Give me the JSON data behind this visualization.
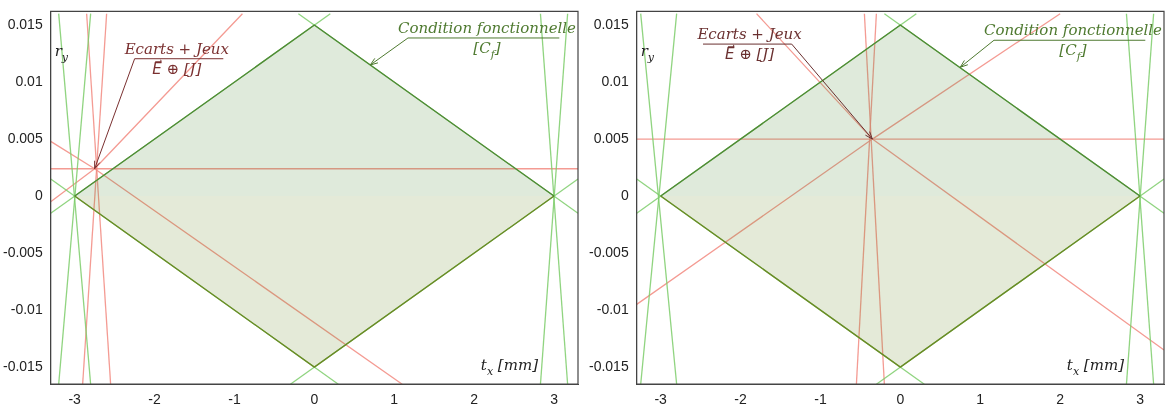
{
  "chart_data": [
    {
      "type": "line",
      "xlabel": "t$_{x}$ [mm]",
      "ylabel": "r$_{y}$",
      "xlim": [
        -3.3,
        3.3
      ],
      "ylim": [
        -0.0165,
        0.0162
      ],
      "xticks": [
        -3,
        -2,
        -1,
        0,
        1,
        2,
        3
      ],
      "yticks": [
        -0.015,
        -0.01,
        -0.005,
        0,
        0.005,
        0.01,
        0.015
      ],
      "annotations": [
        {
          "text": "Ecarts + Jeux\nE⃗ ⊕ [J]",
          "x": -2.75,
          "y": 0.0024
        },
        {
          "text": "Condition fonctionnelle\n[C$_{f}$]",
          "x": 0.7,
          "y": 0.0115
        }
      ],
      "series": [
        {
          "type": "area",
          "color": "#4f8a35",
          "x": [
            -3,
            0,
            3
          ],
          "values": [
            0,
            0.015,
            0
          ]
        },
        {
          "type": "area",
          "color": "#6a8a25",
          "x": [
            -3,
            0,
            3
          ],
          "values": [
            0,
            -0.015,
            0
          ]
        },
        {
          "color": "#7ccc6a",
          "x": [
            -3.3,
            0.2
          ],
          "values": [
            -0.0015,
            0.016
          ]
        },
        {
          "color": "#7ccc6a",
          "x": [
            -0.2,
            3.3
          ],
          "values": [
            0.016,
            -0.0015
          ]
        },
        {
          "color": "#7ccc6a",
          "x": [
            -3.3,
            0.3
          ],
          "values": [
            0.0015,
            -0.0165
          ]
        },
        {
          "color": "#7ccc6a",
          "x": [
            -0.3,
            3.3
          ],
          "values": [
            -0.0165,
            0.0015
          ]
        },
        {
          "color": "#7ccc6a",
          "x": [
            -3.2,
            -2.8
          ],
          "values": [
            0.016,
            -0.0165
          ]
        },
        {
          "color": "#7ccc6a",
          "x": [
            -2.8,
            -3.2
          ],
          "values": [
            0.016,
            -0.0165
          ]
        },
        {
          "color": "#7ccc6a",
          "x": [
            2.83,
            3.17
          ],
          "values": [
            0.016,
            -0.0165
          ]
        },
        {
          "color": "#7ccc6a",
          "x": [
            3.17,
            2.83
          ],
          "values": [
            0.016,
            -0.0165
          ]
        },
        {
          "color": "#f28a80",
          "x": [
            -3.3,
            3.3
          ],
          "values": [
            0.0024,
            0.0024
          ]
        },
        {
          "color": "#f28a80",
          "x": [
            -3.3,
            -2.75,
            -0.9
          ],
          "values": [
            -0.0005,
            0.0024,
            0.016
          ]
        },
        {
          "color": "#f28a80",
          "x": [
            -3.3,
            -2.75,
            1.1
          ],
          "values": [
            0.0048,
            0.0024,
            -0.0165
          ]
        },
        {
          "color": "#f28a80",
          "x": [
            -2.85,
            -2.55
          ],
          "values": [
            0.016,
            -0.0165
          ]
        },
        {
          "color": "#f28a80",
          "x": [
            -2.6,
            -2.9
          ],
          "values": [
            0.016,
            -0.0165
          ]
        }
      ]
    },
    {
      "type": "line",
      "xlabel": "t$_{x}$ [mm]",
      "ylabel": "r$_{y}$",
      "xlim": [
        -3.3,
        3.3
      ],
      "ylim": [
        -0.0165,
        0.0162
      ],
      "xticks": [
        -3,
        -2,
        -1,
        0,
        1,
        2,
        3
      ],
      "yticks": [
        -0.015,
        -0.01,
        -0.005,
        0,
        0.005,
        0.01,
        0.015
      ],
      "annotations": [
        {
          "text": "Ecarts + Jeux\nE⃗ ⊕ [J]",
          "x": -0.35,
          "y": 0.005
        },
        {
          "text": "Condition fonctionnelle\n[C$_{f}$]",
          "x": 0.75,
          "y": 0.0113
        }
      ],
      "series": [
        {
          "type": "area",
          "color": "#4f8a35",
          "x": [
            -3,
            0,
            3
          ],
          "values": [
            0,
            0.015,
            0
          ]
        },
        {
          "type": "area",
          "color": "#6a8a25",
          "x": [
            -3,
            0,
            3
          ],
          "values": [
            0,
            -0.015,
            0
          ]
        },
        {
          "color": "#7ccc6a",
          "x": [
            -3.3,
            0.2
          ],
          "values": [
            -0.0015,
            0.016
          ]
        },
        {
          "color": "#7ccc6a",
          "x": [
            -0.2,
            3.3
          ],
          "values": [
            0.016,
            -0.0015
          ]
        },
        {
          "color": "#7ccc6a",
          "x": [
            -3.3,
            0.3
          ],
          "values": [
            0.0015,
            -0.0165
          ]
        },
        {
          "color": "#7ccc6a",
          "x": [
            -0.3,
            3.3
          ],
          "values": [
            -0.0165,
            0.0015
          ]
        },
        {
          "color": "#7ccc6a",
          "x": [
            -3.25,
            -2.8
          ],
          "values": [
            0.016,
            -0.0165
          ]
        },
        {
          "color": "#7ccc6a",
          "x": [
            -2.8,
            -3.25
          ],
          "values": [
            0.016,
            -0.0165
          ]
        },
        {
          "color": "#7ccc6a",
          "x": [
            2.83,
            3.17
          ],
          "values": [
            0.016,
            -0.0165
          ]
        },
        {
          "color": "#7ccc6a",
          "x": [
            3.17,
            2.83
          ],
          "values": [
            0.016,
            -0.0165
          ]
        },
        {
          "color": "#f28a80",
          "x": [
            -3.3,
            3.3
          ],
          "values": [
            0.005,
            0.005
          ]
        },
        {
          "color": "#f28a80",
          "x": [
            -3.3,
            -0.35,
            2.0
          ],
          "values": [
            -0.0095,
            0.005,
            0.016
          ]
        },
        {
          "color": "#f28a80",
          "x": [
            -1.8,
            -0.35,
            3.3
          ],
          "values": [
            0.016,
            0.005,
            -0.0135
          ]
        },
        {
          "color": "#f28a80",
          "x": [
            -0.45,
            -0.2
          ],
          "values": [
            0.016,
            -0.0165
          ]
        },
        {
          "color": "#f28a80",
          "x": [
            -0.3,
            -0.55
          ],
          "values": [
            0.016,
            -0.0165
          ]
        }
      ]
    }
  ]
}
